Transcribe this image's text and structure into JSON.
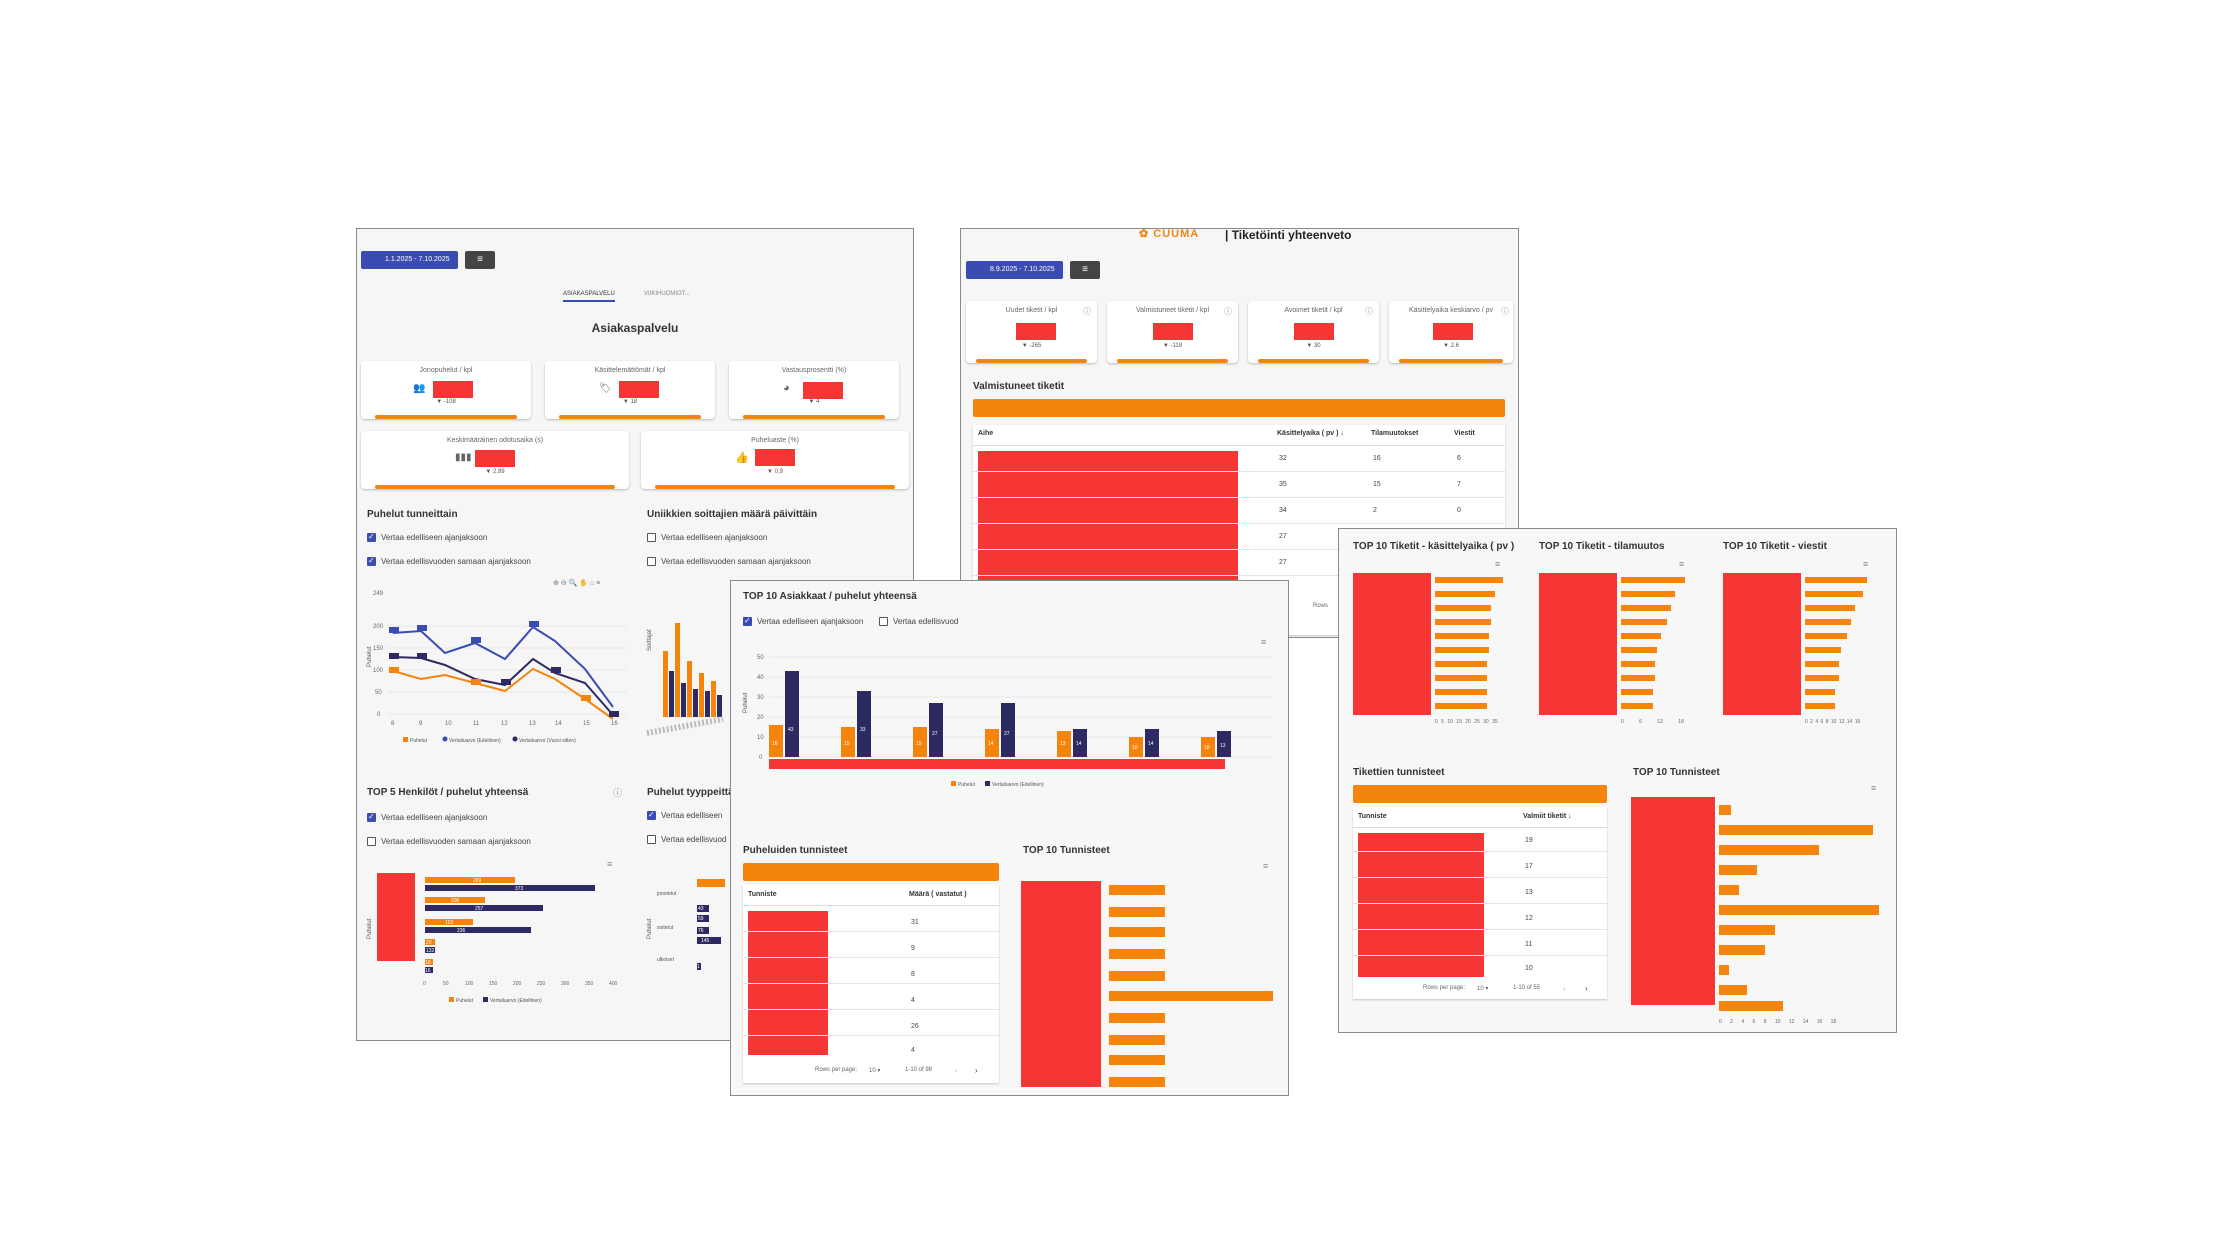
{
  "colors": {
    "orange": "#f5840c",
    "red": "#f63535",
    "navy": "#2d2a63",
    "blue": "#3a4bb1"
  },
  "panel1": {
    "date_range": "1.1.2025 - 7.10.2025",
    "tabs": [
      "ASIAKASPALVELU",
      "VIIKIHUOMIOT..."
    ],
    "title": "Asiakaspalvelu",
    "kpis": [
      {
        "label": "Jonopuhelut / kpl",
        "delta": "▼ -108"
      },
      {
        "label": "Käsittelemättömät / kpl",
        "delta": "▼ 18"
      },
      {
        "label": "Vastausprosentti (%)",
        "delta": "▼ 4"
      },
      {
        "label": "Keskimääräinen odotusaika (s)",
        "delta": "▼ 2,89"
      },
      {
        "label": "Puheluaste (%)",
        "delta": "▼ 0,9"
      }
    ],
    "hourly": {
      "title": "Puhelut tunneittain",
      "cb1": "Vertaa edelliseen ajanjaksoon",
      "cb2": "Vertaa edellisvuoden samaan ajanjaksoon",
      "ylabel": "Puhelut",
      "y_top": "249",
      "y_ticks": [
        "200",
        "150",
        "100",
        "50",
        "0"
      ],
      "x_ticks": [
        "8",
        "9",
        "10",
        "11",
        "12",
        "13",
        "14",
        "15",
        "16"
      ],
      "legend": [
        "Puhelut",
        "Vertailuarvo (Edellinen)",
        "Vertailuarvo (Vuosi sitten)"
      ]
    },
    "unique": {
      "title": "Uniikkien soittajien määrä päivittäin",
      "cb1": "Vertaa edelliseen ajanjaksoon",
      "cb2": "Vertaa edellisvuoden samaan ajanjaksoon",
      "ylabel": "Soittajat"
    },
    "top5": {
      "title": "TOP 5 Henkilöt / puhelut yhteensä",
      "cb1": "Vertaa edelliseen ajanjaksoon",
      "cb2": "Vertaa edellisvuoden samaan ajanjaksoon",
      "ylabel": "Puhelut",
      "labels": [
        "269",
        "373",
        "206",
        "257",
        "153",
        "236",
        "20",
        "132",
        "18",
        "16"
      ],
      "x_ticks": [
        "0",
        "50",
        "100",
        "150",
        "200",
        "250",
        "300",
        "350",
        "400"
      ],
      "legend": [
        "Puhelut",
        "Vertailuarvo (Edellinen)"
      ]
    },
    "types": {
      "title": "Puhelut tyyppeittäin",
      "cb1": "Vertaa edelliseen",
      "cb2": "Vertaa edellisvuod",
      "ylabel": "Puhelut",
      "cats": [
        "jonotetut",
        "soitetut",
        "ulkoiset"
      ],
      "labels": [
        "43",
        "59",
        "76",
        "145",
        "1"
      ]
    }
  },
  "panel2": {
    "logo": "CUUMA",
    "title": "| Tiketöinti yhteenveto",
    "date_range": "8.9.2025 - 7.10.2025",
    "kpis": [
      {
        "label": "Uudet tiketit / kpl",
        "delta": "▼ -265"
      },
      {
        "label": "Valmistuneet tiketit / kpl",
        "delta": "▼ -118"
      },
      {
        "label": "Avoimet tiketit / kpl",
        "delta": "▼ 30"
      },
      {
        "label": "Käsittelyaika keskiarvo / pv",
        "delta": "▼ 2,6"
      }
    ],
    "section": "Valmistuneet tiketit",
    "table_headers": [
      "Aihe",
      "Käsittelyaika ( pv ) ↓",
      "Tilamuutokset",
      "Viestit"
    ],
    "rows": [
      [
        "32",
        "16",
        "6"
      ],
      [
        "35",
        "15",
        "7"
      ],
      [
        "34",
        "2",
        "0"
      ],
      [
        "27",
        "",
        ""
      ],
      [
        "27",
        "",
        ""
      ],
      [
        "22",
        "",
        ""
      ]
    ],
    "rows_label": "Rows"
  },
  "panel3": {
    "title": "TOP 10 Asiakkaat / puhelut yhteensä",
    "cb1": "Vertaa edelliseen ajanjaksoon",
    "cb2": "Vertaa edellisvuod",
    "ylabel": "Puhelut",
    "y_ticks": [
      "50",
      "40",
      "30",
      "20",
      "10",
      "0"
    ],
    "bar_labels": [
      [
        "16",
        "43"
      ],
      [
        "15",
        "33"
      ],
      [
        "15",
        "27"
      ],
      [
        "14",
        "27"
      ],
      [
        "13",
        "14"
      ],
      [
        "10",
        "14"
      ],
      [
        "10",
        "13"
      ]
    ],
    "legend": [
      "Puhelut",
      "Vertailuarvo (Edellinen)"
    ],
    "tags_title": "Puheluiden tunnisteet",
    "tags_headers": [
      "Tunniste",
      "Määrä ( vastatut )"
    ],
    "tags_values": [
      "31",
      "9",
      "8",
      "4",
      "26",
      "4"
    ],
    "tags_footer": {
      "rows": "Rows per page:",
      "per": "10 ▾",
      "range": "1-10 of 98"
    },
    "top10_title": "TOP 10 Tunnisteet"
  },
  "panel4": {
    "t1": "TOP 10 Tiketit - käsittelyaika ( pv )",
    "t2": "TOP 10 Tiketit - tilamuutos",
    "t3": "TOP 10 Tiketit - viestit",
    "ax1": [
      "0",
      "5",
      "10",
      "15",
      "20",
      "25",
      "30",
      "35"
    ],
    "ax2": [
      "0",
      "6",
      "12",
      "18"
    ],
    "ax3": [
      "0",
      "2",
      "4",
      "6",
      "8",
      "10",
      "12",
      "14",
      "16"
    ],
    "tags_title": "Tikettien tunnisteet",
    "tags_headers": [
      "Tunniste",
      "Valmiit tiketit ↓"
    ],
    "tags_values": [
      "19",
      "17",
      "13",
      "12",
      "11",
      "10"
    ],
    "tags_footer": {
      "rows": "Rows per page:",
      "per": "10 ▾",
      "range": "1-10 of 55"
    },
    "top10_title": "TOP 10 Tunnisteet",
    "ax4": [
      "0",
      "2",
      "4",
      "6",
      "8",
      "10",
      "12",
      "14",
      "16",
      "18"
    ]
  }
}
